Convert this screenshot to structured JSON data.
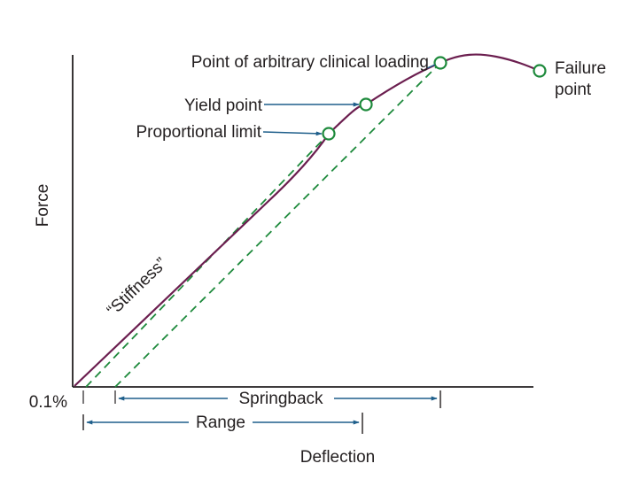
{
  "axes": {
    "y_label": "Force",
    "x_label": "Deflection",
    "origin_label": "0.1%"
  },
  "points": {
    "clinical_loading": "Point of arbitrary clinical loading",
    "yield": "Yield point",
    "proportional": "Proportional limit",
    "failure_line1": "Failure",
    "failure_line2": "point"
  },
  "curve_label": "“Stiffness”",
  "dimensions": {
    "springback": "Springback",
    "range": "Range"
  },
  "colors": {
    "curve": "#6b1e4f",
    "markers": "#1e8a3c",
    "dashed": "#1e8a3c",
    "arrows": "#1f5f8b",
    "axes": "#231f20"
  }
}
